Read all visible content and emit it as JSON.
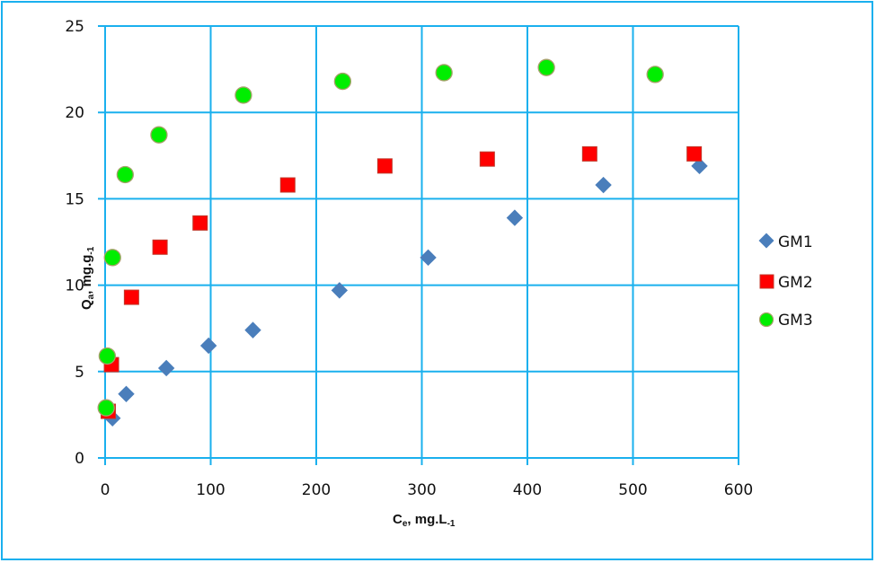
{
  "chart_data": {
    "type": "scatter",
    "title": "",
    "xlabel": "Ce, mg.L-1",
    "ylabel": "Qa, mg.g-1",
    "xlim": [
      0,
      600
    ],
    "ylim": [
      0,
      25
    ],
    "x_ticks": [
      0,
      100,
      200,
      300,
      400,
      500,
      600
    ],
    "y_ticks": [
      0,
      5,
      10,
      15,
      20,
      25
    ],
    "grid": true,
    "legend_position": "right",
    "series": [
      {
        "name": "GM1",
        "marker": "diamond",
        "color": "#4a7ebb",
        "x": [
          7,
          20,
          58,
          98,
          140,
          222,
          306,
          388,
          472,
          563
        ],
        "y": [
          2.3,
          3.7,
          5.2,
          6.5,
          7.4,
          9.7,
          11.6,
          13.9,
          15.8,
          16.9
        ]
      },
      {
        "name": "GM2",
        "marker": "square",
        "color": "#ff0000",
        "x": [
          3,
          6,
          25,
          52,
          90,
          173,
          265,
          362,
          459,
          558
        ],
        "y": [
          2.7,
          5.4,
          9.3,
          12.2,
          13.6,
          15.8,
          16.9,
          17.3,
          17.6,
          17.6
        ]
      },
      {
        "name": "GM3",
        "marker": "circle",
        "color": "#00ee00",
        "x": [
          1,
          2,
          7,
          19,
          51,
          131,
          225,
          321,
          418,
          521
        ],
        "y": [
          2.9,
          5.9,
          11.6,
          16.4,
          18.7,
          21.0,
          21.8,
          22.3,
          22.6,
          22.2
        ]
      }
    ]
  },
  "axes": {
    "x_title_main": "C",
    "x_title_sub": "e",
    "x_title_rest": ", mg.L",
    "x_title_sup": "-1",
    "y_title_main": "Q",
    "y_title_sub": "a",
    "y_title_rest": ", mg.g",
    "y_title_sup": "-1"
  },
  "legend": {
    "items": [
      {
        "label": "GM1"
      },
      {
        "label": "GM2"
      },
      {
        "label": "GM3"
      }
    ]
  },
  "colors": {
    "grid": "#1ab0ee",
    "frame": "#1ab0ee"
  }
}
